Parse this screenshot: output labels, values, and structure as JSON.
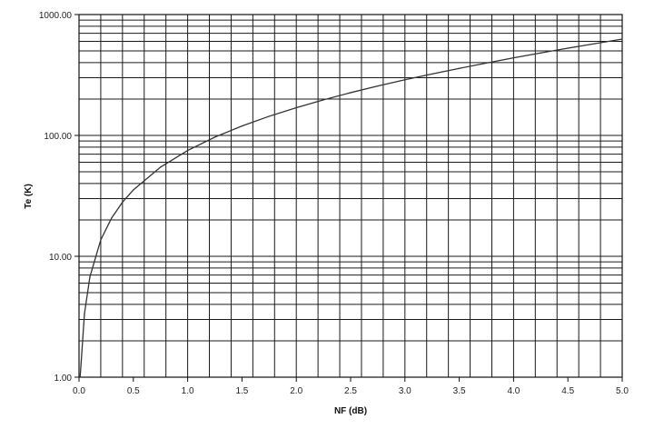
{
  "chart_data": {
    "type": "line",
    "title": "",
    "xlabel": "NF (dB)",
    "ylabel": "Te (K)",
    "xlim": [
      0,
      5
    ],
    "ylim": [
      1,
      1000
    ],
    "y_scale": "log",
    "grid": true,
    "legend": "none",
    "x_tick_labels": [
      "0.0",
      "0.5",
      "1.0",
      "1.5",
      "2.0",
      "2.5",
      "3.0",
      "3.5",
      "4.0",
      "4.5",
      "5.0"
    ],
    "y_tick_labels": [
      "1.00",
      "10.00",
      "100.00",
      "1000.00"
    ],
    "series": [
      {
        "color": "#333333",
        "x": [
          0.01,
          0.02,
          0.05,
          0.1,
          0.2,
          0.3,
          0.4,
          0.5,
          0.75,
          1.0,
          1.25,
          1.5,
          1.75,
          2.0,
          2.25,
          2.5,
          2.75,
          3.0,
          3.25,
          3.5,
          3.75,
          4.0,
          4.25,
          4.5,
          4.75,
          5.0
        ],
        "y": [
          0.67,
          1.34,
          3.35,
          6.75,
          13.67,
          20.74,
          28.04,
          35.39,
          54.64,
          75.09,
          96.79,
          119.64,
          144.03,
          169.62,
          196.99,
          225.86,
          256.41,
          288.63,
          322.7,
          358.71,
          396.77,
          438.45,
          481.09,
          526.65,
          574.77,
          627.06
        ]
      }
    ]
  }
}
